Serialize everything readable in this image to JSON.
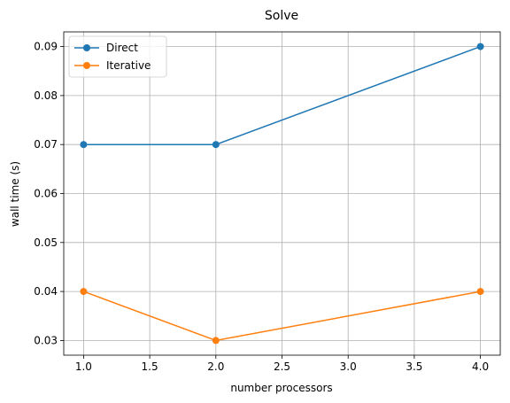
{
  "chart_data": {
    "type": "line",
    "title": "Solve",
    "xlabel": "number processors",
    "ylabel": "wall time (s)",
    "xlim": [
      0.85,
      4.15
    ],
    "ylim": [
      0.027,
      0.093
    ],
    "xticks": [
      1.0,
      1.5,
      2.0,
      2.5,
      3.0,
      3.5,
      4.0
    ],
    "xtick_labels": [
      "1.0",
      "1.5",
      "2.0",
      "2.5",
      "3.0",
      "3.5",
      "4.0"
    ],
    "yticks": [
      0.03,
      0.04,
      0.05,
      0.06,
      0.07,
      0.08,
      0.09
    ],
    "ytick_labels": [
      "0.03",
      "0.04",
      "0.05",
      "0.06",
      "0.07",
      "0.08",
      "0.09"
    ],
    "grid": true,
    "legend_position": "top-left",
    "x": [
      1,
      2,
      4
    ],
    "series": [
      {
        "name": "Direct",
        "color": "#1f77b4",
        "marker": "circle",
        "values": [
          0.07,
          0.07,
          0.09
        ]
      },
      {
        "name": "Iterative",
        "color": "#ff7f0e",
        "marker": "circle",
        "values": [
          0.04,
          0.03,
          0.04
        ]
      }
    ]
  }
}
